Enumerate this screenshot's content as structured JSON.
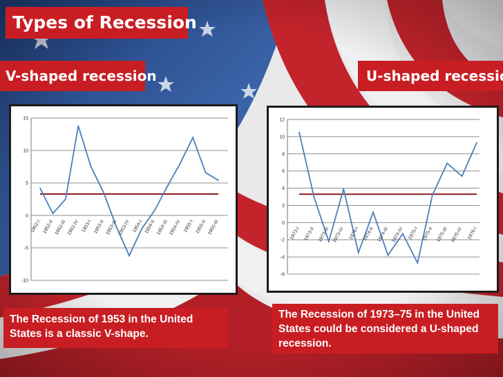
{
  "title": "Types of Recession",
  "v_label": "V-shaped recession",
  "u_label": "U-shaped recession",
  "caption_v": "The Recession of 1953 in the United States is a classic V-shape.",
  "caption_u": "The Recession of 1973–75 in the United States could be considered a U-shaped recession.",
  "colors": {
    "banner": "#c81e23",
    "line": "#4a7ebb",
    "reference": "#8b1a1a",
    "grid": "#8c8c8c"
  },
  "chart_data": [
    {
      "type": "line",
      "categories": [
        "1952-I",
        "1952-II",
        "1952-III",
        "1952-IV",
        "1953-I",
        "1953-II",
        "1953-III",
        "1953-IV",
        "1954-I",
        "1954-II",
        "1954-III",
        "1954-IV",
        "1955-I",
        "1955-II",
        "1955-III"
      ],
      "values": [
        4.2,
        0.3,
        2.5,
        13.8,
        7.5,
        3.5,
        -1.8,
        -6.2,
        -2.0,
        0.8,
        4.5,
        8.0,
        12.0,
        6.6,
        5.4
      ],
      "reference_line": 3.3,
      "ylim": [
        -10,
        15
      ],
      "yticks": [
        15,
        10,
        5,
        0,
        -5,
        -10
      ],
      "grid": true
    },
    {
      "type": "line",
      "categories": [
        "1973-I",
        "1973-II",
        "1973-III",
        "1973-IV",
        "1974-I",
        "1974-II",
        "1974-III",
        "1974-IV",
        "1975-I",
        "1975-II",
        "1975-III",
        "1975-IV",
        "1976-I"
      ],
      "values": [
        10.5,
        3.0,
        -2.2,
        3.9,
        -3.5,
        1.2,
        -3.8,
        -1.3,
        -4.7,
        3.2,
        6.9,
        5.4,
        9.3
      ],
      "reference_line": 3.3,
      "ylim": [
        -6,
        12
      ],
      "yticks": [
        12,
        10,
        8,
        6,
        4,
        2,
        0,
        -2,
        -4,
        -6
      ],
      "grid": true
    }
  ]
}
